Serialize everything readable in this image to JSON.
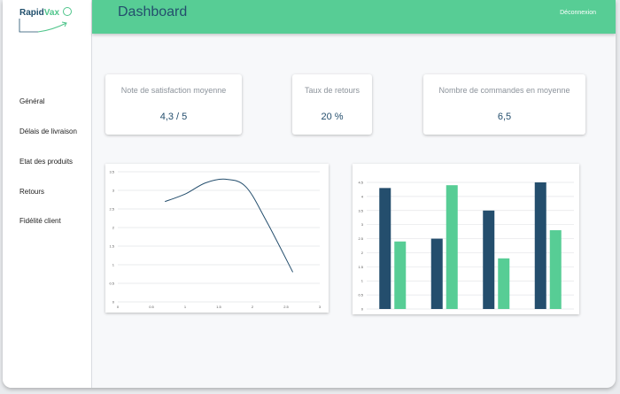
{
  "logo": {
    "name_part1": "Rapid",
    "name_part2": "Vax"
  },
  "header": {
    "title": "Dashboard",
    "logout_label": "Déconnexion"
  },
  "sidebar": {
    "items": [
      {
        "label": "Général"
      },
      {
        "label": "Délais de livraison"
      },
      {
        "label": "Etat des produits"
      },
      {
        "label": "Retours"
      },
      {
        "label": "Fidélité client"
      }
    ]
  },
  "kpis": [
    {
      "label": "Note de satisfaction moyenne",
      "value": "4,3 / 5"
    },
    {
      "label": "Taux de retours",
      "value": "20 %"
    },
    {
      "label": "Nombre de commandes en moyenne",
      "value": "6,5"
    }
  ],
  "colors": {
    "accent": "#57cd95",
    "primary": "#244e6d"
  },
  "chart_data": [
    {
      "type": "line",
      "x": [
        0.7,
        1.0,
        1.3,
        1.6,
        1.9,
        2.2,
        2.6
      ],
      "y": [
        2.7,
        2.9,
        3.2,
        3.3,
        3.1,
        2.2,
        0.8
      ],
      "xlim": [
        0,
        3
      ],
      "ylim": [
        0,
        3.5
      ],
      "x_ticks": [
        "0",
        "0.5",
        "1",
        "1.5",
        "2",
        "2.5",
        "3"
      ],
      "y_ticks": [
        "0",
        "0.5",
        "1",
        "1.5",
        "2",
        "2.5",
        "3",
        "3.5"
      ],
      "grid": true,
      "color": "#244e6d"
    },
    {
      "type": "bar",
      "categories": [
        "",
        "",
        "",
        ""
      ],
      "series": [
        {
          "values": [
            4.3,
            2.5,
            3.5,
            4.5
          ],
          "color": "#244e6d"
        },
        {
          "values": [
            2.4,
            4.4,
            1.8,
            2.8
          ],
          "color": "#57cd95"
        }
      ],
      "ylim": [
        0,
        4.5
      ],
      "y_ticks": [
        "0",
        "0.5",
        "1",
        "1.5",
        "2",
        "2.5",
        "3",
        "3.5",
        "4",
        "4.5"
      ],
      "grid": true
    }
  ]
}
